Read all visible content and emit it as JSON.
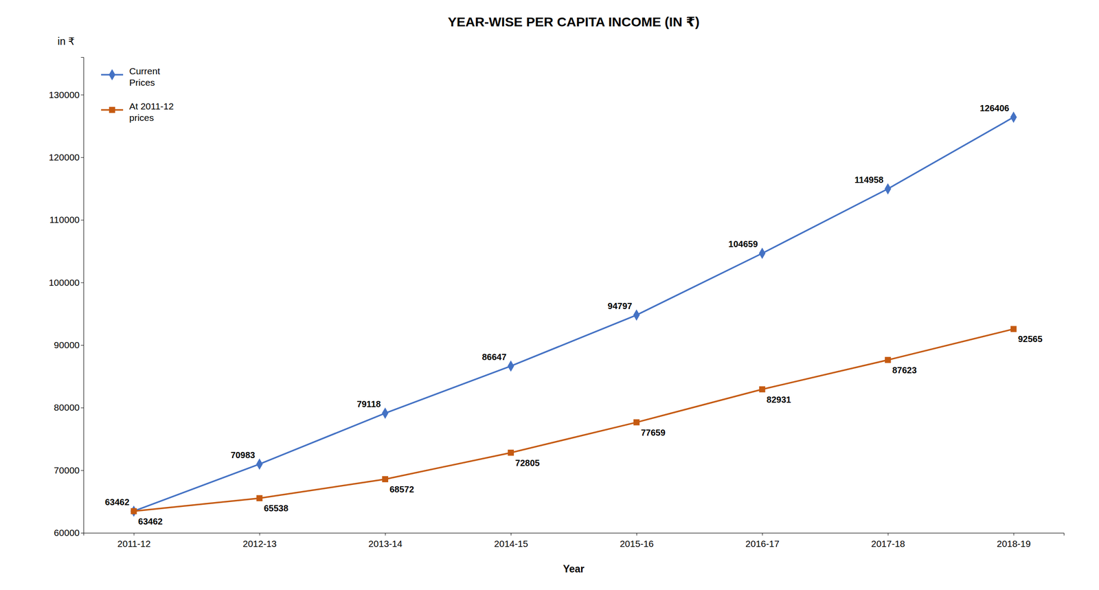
{
  "chart_data": {
    "type": "line",
    "title": "YEAR-WISE PER CAPITA INCOME (IN ₹)",
    "xlabel": "Year",
    "ylabel": "in ₹",
    "categories": [
      "2011-12",
      "2012-13",
      "2013-14",
      "2014-15",
      "2015-16",
      "2016-17",
      "2017-18",
      "2018-19"
    ],
    "series": [
      {
        "name": "Current\nPrices",
        "color": "#4472C4",
        "marker": "diamond",
        "values": [
          63462,
          70983,
          79118,
          86647,
          94797,
          104659,
          114958,
          126406
        ]
      },
      {
        "name": "At 2011-12\nprices",
        "color": "#C55A11",
        "marker": "square",
        "values": [
          63462,
          65538,
          68572,
          72805,
          77659,
          82931,
          87623,
          92565
        ]
      }
    ],
    "ylim": [
      60000,
      136000
    ],
    "yticks": [
      60000,
      70000,
      80000,
      90000,
      100000,
      110000,
      120000,
      130000
    ],
    "grid": false,
    "legend": "upper left",
    "data_labels": true
  }
}
